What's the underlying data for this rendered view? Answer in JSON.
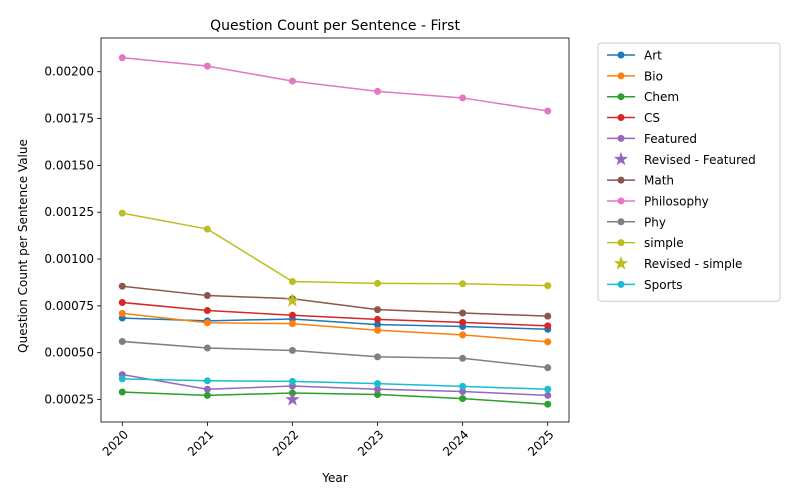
{
  "chart_data": {
    "type": "line",
    "title": "Question Count per Sentence - First",
    "xlabel": "Year",
    "ylabel": "Question Count per Sentence Value",
    "x": [
      2020,
      2021,
      2022,
      2023,
      2024,
      2025
    ],
    "x_tick_labels": [
      "2020",
      "2021",
      "2022",
      "2023",
      "2024",
      "2025"
    ],
    "xlim": [
      2019.75,
      2025.25
    ],
    "ylim": [
      0.00013,
      0.00218
    ],
    "y_ticks": [
      0.00025,
      0.0005,
      0.00075,
      0.001,
      0.00125,
      0.0015,
      0.00175,
      0.002
    ],
    "y_tick_labels": [
      "0.00025",
      "0.00050",
      "0.00075",
      "0.00100",
      "0.00125",
      "0.00150",
      "0.00175",
      "0.00200"
    ],
    "grid": false,
    "legend_position": "outside-right",
    "series": [
      {
        "name": "Art",
        "color": "#1f77b4",
        "marker": "circle",
        "values": [
          0.000685,
          0.00067,
          0.00068,
          0.00065,
          0.00064,
          0.000625
        ]
      },
      {
        "name": "Bio",
        "color": "#ff7f0e",
        "marker": "circle",
        "values": [
          0.00071,
          0.00066,
          0.000655,
          0.00062,
          0.000595,
          0.000558
        ]
      },
      {
        "name": "Chem",
        "color": "#2ca02c",
        "marker": "circle",
        "values": [
          0.00029,
          0.000272,
          0.000285,
          0.000277,
          0.000255,
          0.000225
        ]
      },
      {
        "name": "CS",
        "color": "#d62728",
        "marker": "circle",
        "values": [
          0.000768,
          0.000725,
          0.0007,
          0.000678,
          0.000662,
          0.000643
        ]
      },
      {
        "name": "Featured",
        "color": "#9467bd",
        "marker": "circle",
        "values": [
          0.000383,
          0.000305,
          0.000322,
          0.000305,
          0.000293,
          0.000272
        ]
      },
      {
        "name": "Revised - Featured",
        "color": "#9467bd",
        "marker": "star",
        "points": [
          {
            "x": 2022,
            "y": 0.00025
          }
        ]
      },
      {
        "name": "Math",
        "color": "#8c564b",
        "marker": "circle",
        "values": [
          0.000855,
          0.000805,
          0.000788,
          0.00073,
          0.000712,
          0.000695
        ]
      },
      {
        "name": "Philosophy",
        "color": "#e377c2",
        "marker": "circle",
        "values": [
          0.002075,
          0.00203,
          0.00195,
          0.001895,
          0.00186,
          0.00179
        ]
      },
      {
        "name": "Phy",
        "color": "#7f7f7f",
        "marker": "circle",
        "values": [
          0.00056,
          0.000525,
          0.000512,
          0.000478,
          0.00047,
          0.00042
        ]
      },
      {
        "name": "simple",
        "color": "#bcbd22",
        "marker": "circle",
        "values": [
          0.001245,
          0.00116,
          0.00088,
          0.00087,
          0.000868,
          0.000858
        ]
      },
      {
        "name": "Revised - simple",
        "color": "#bcbd22",
        "marker": "star",
        "points": [
          {
            "x": 2022,
            "y": 0.000778
          }
        ]
      },
      {
        "name": "Sports",
        "color": "#17becf",
        "marker": "circle",
        "values": [
          0.00036,
          0.00035,
          0.000347,
          0.000335,
          0.00032,
          0.000305
        ]
      }
    ]
  }
}
